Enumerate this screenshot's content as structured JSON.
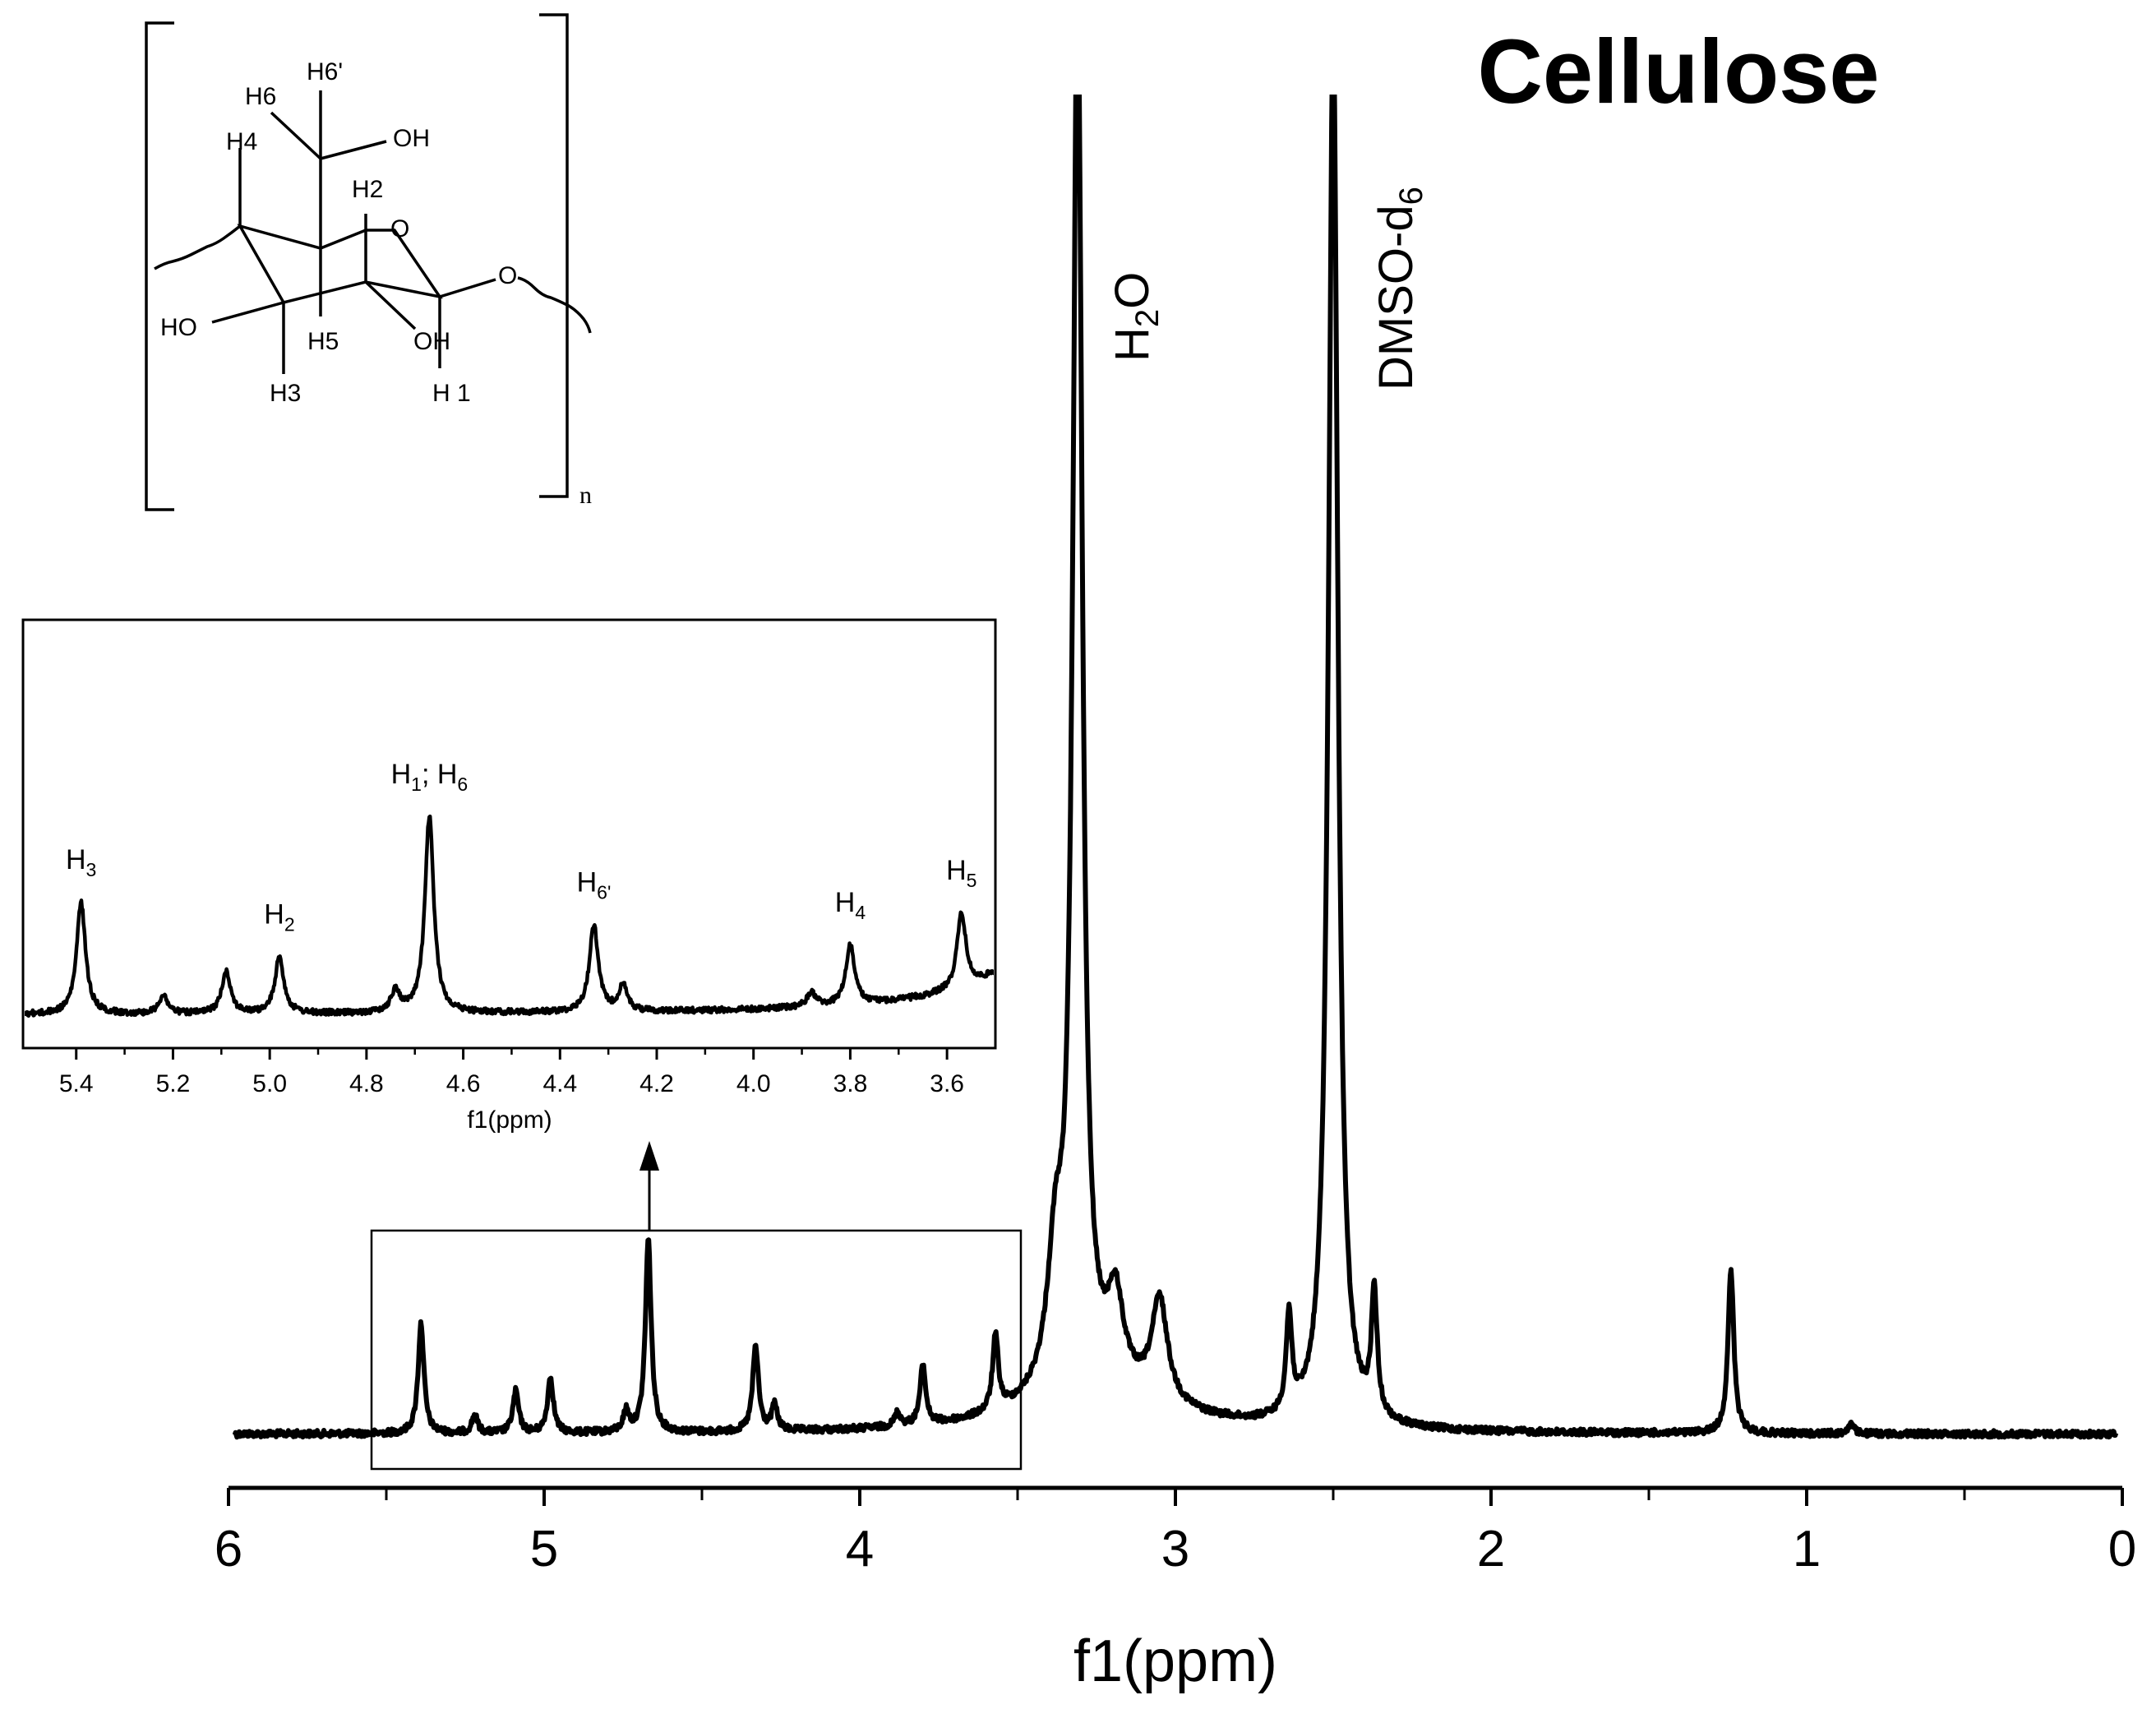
{
  "chart_data": {
    "type": "line",
    "title": "Cellulose",
    "xlabel": "f1(ppm)",
    "ylabel": "",
    "x_reversed": true,
    "xlim": [
      6,
      0
    ],
    "xticks": [
      "6",
      "5",
      "4",
      "3",
      "2",
      "1",
      "0"
    ],
    "grid": false,
    "series": [
      {
        "peaks": [
          {
            "ppm": 5.39,
            "height": 0.079
          },
          {
            "ppm": 5.22,
            "height": 0.013
          },
          {
            "ppm": 5.09,
            "height": 0.03
          },
          {
            "ppm": 4.98,
            "height": 0.04
          },
          {
            "ppm": 4.74,
            "height": 0.015
          },
          {
            "ppm": 4.67,
            "height": 0.138
          },
          {
            "ppm": 4.33,
            "height": 0.061
          },
          {
            "ppm": 4.27,
            "height": 0.018
          },
          {
            "ppm": 3.88,
            "height": 0.01
          },
          {
            "ppm": 3.8,
            "height": 0.042
          },
          {
            "ppm": 3.57,
            "height": 0.053
          },
          {
            "ppm": 3.38,
            "height": 0.09
          },
          {
            "ppm": 3.31,
            "height": 1.0
          },
          {
            "ppm": 3.19,
            "height": 0.06
          },
          {
            "ppm": 3.05,
            "height": 0.073
          },
          {
            "ppm": 2.64,
            "height": 0.07
          },
          {
            "ppm": 2.5,
            "height": 1.0
          },
          {
            "ppm": 2.37,
            "height": 0.087
          },
          {
            "ppm": 1.24,
            "height": 0.117
          },
          {
            "ppm": 0.86,
            "height": 0.007
          }
        ]
      }
    ],
    "annotations": {
      "h2o_base": "H",
      "h2o_sub": "2",
      "h2o_tail": "O",
      "dmso_base": "DMSO-d",
      "dmso_sub": "6"
    },
    "inset": {
      "xlabel": "f1(ppm)",
      "xlim": [
        5.51,
        3.5
      ],
      "xticks": [
        "5.4",
        "5.2",
        "5.0",
        "4.8",
        "4.6",
        "4.4",
        "4.2",
        "4.0",
        "3.8",
        "3.6"
      ],
      "peak_labels": [
        {
          "base": "H",
          "sub": "3"
        },
        {
          "base": "H",
          "sub": "2"
        },
        {
          "base": "H",
          "sub": "1",
          "mid": "; H",
          "sub2": "6"
        },
        {
          "base": "H",
          "sub": "6'"
        },
        {
          "base": "H",
          "sub": "4"
        },
        {
          "base": "H",
          "sub": "5"
        }
      ]
    }
  },
  "structure": {
    "labels": [
      "H6'",
      "H6",
      "OH",
      "H4",
      "H2",
      "O",
      "O",
      "HO",
      "H5",
      "OH",
      "H3",
      "H 1",
      "n"
    ]
  },
  "colors": {
    "line": "#000000",
    "background": "#ffffff"
  }
}
